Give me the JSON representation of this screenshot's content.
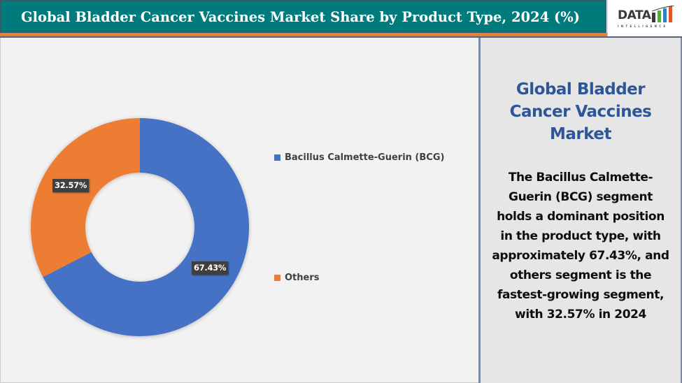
{
  "header": {
    "title": "Global Bladder Cancer Vaccines Market Share by Product Type, 2024 (%)",
    "logo": {
      "name": "DATA",
      "tagline": "INTELLIGENCE"
    }
  },
  "colors": {
    "header_bg": "#007b7b",
    "header_accent": "#ed7d31",
    "bcg": "#4472c4",
    "others": "#ed7d31",
    "side_title": "#2e5596",
    "label_bg": "#3f3f3f"
  },
  "chart_data": {
    "type": "pie",
    "subtype": "donut",
    "title": "Global Bladder Cancer Vaccines Market Share by Product Type, 2024 (%)",
    "categories": [
      "Bacillus Calmette-Guerin (BCG)",
      "Others"
    ],
    "values": [
      67.43,
      32.57
    ],
    "labels": [
      "67.43%",
      "32.57%"
    ],
    "colors": [
      "#4472c4",
      "#ed7d31"
    ],
    "start_angle_deg": 0,
    "direction": "clockwise",
    "legend_position": "right",
    "unit": "%"
  },
  "legend": {
    "items": [
      {
        "label": "Bacillus Calmette-Guerin (BCG)",
        "color": "#4472c4"
      },
      {
        "label": "Others",
        "color": "#ed7d31"
      }
    ]
  },
  "data_labels": {
    "bcg": "67.43%",
    "others": "32.57%"
  },
  "side_panel": {
    "title_lines": [
      "Global Bladder",
      "Cancer Vaccines",
      "Market"
    ],
    "body_lines": [
      "The Bacillus Calmette-",
      "Guerin (BCG) segment",
      "holds a dominant position",
      "in the product type, with",
      "approximately 67.43%, and",
      "others segment is the",
      "fastest-growing segment,",
      "with 32.57% in 2024"
    ]
  }
}
